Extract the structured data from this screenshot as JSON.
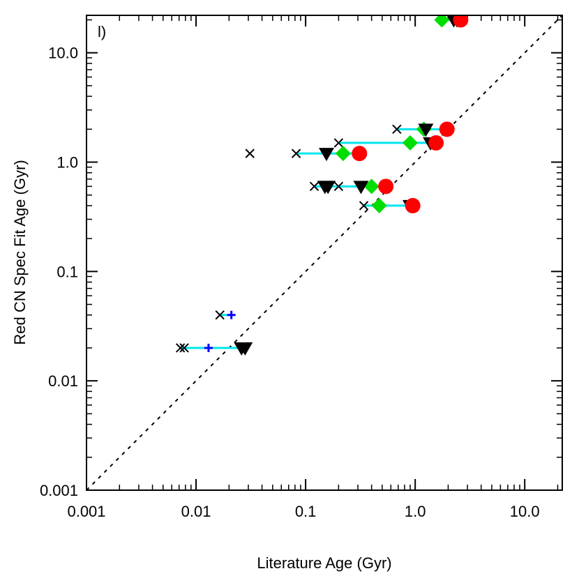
{
  "chart_data": {
    "type": "scatter",
    "title": "",
    "panel_label": "l)",
    "xlabel": "Literature Age (Gyr)",
    "ylabel": "Red CN Spec Fit Age (Gyr)",
    "xscale": "log",
    "yscale": "log",
    "xlim": [
      0.001,
      22
    ],
    "ylim": [
      0.001,
      22
    ],
    "x_tick_labels": [
      "0.001",
      "0.01",
      "0.1",
      "1.0",
      "10.0"
    ],
    "y_tick_labels": [
      "0.001",
      "0.01",
      "0.1",
      "1.0",
      "10.0"
    ],
    "x_ticks": [
      0.001,
      0.01,
      0.1,
      1,
      10
    ],
    "y_ticks": [
      0.001,
      0.01,
      0.1,
      1,
      10
    ],
    "reference_line": "one-to-one (dashed)",
    "colors": {
      "connector": "#00e5ee",
      "cross": "#000000",
      "plus": "#0000ff",
      "diamond": "#00dd00",
      "triangle": "#000000",
      "circle": "#ff0000",
      "reference": "#000000"
    },
    "ranges": [
      {
        "y": 20.0,
        "x": [
          1.75,
          2.6
        ]
      },
      {
        "y": 2.0,
        "x": [
          0.68,
          1.95
        ]
      },
      {
        "y": 1.5,
        "x": [
          0.2,
          1.55
        ]
      },
      {
        "y": 1.2,
        "x": [
          0.082,
          0.31
        ]
      },
      {
        "y": 0.6,
        "x": [
          0.12,
          0.54
        ]
      },
      {
        "y": 0.4,
        "x": [
          0.34,
          0.95
        ]
      },
      {
        "y": 0.04,
        "x": [
          0.0165,
          0.021
        ]
      },
      {
        "y": 0.02,
        "x": [
          0.0072,
          0.027
        ]
      }
    ],
    "series": [
      {
        "name": "cross",
        "marker": "x",
        "points": [
          {
            "x": 0.68,
            "y": 2.0
          },
          {
            "x": 0.2,
            "y": 1.5
          },
          {
            "x": 0.031,
            "y": 1.2
          },
          {
            "x": 0.082,
            "y": 1.2
          },
          {
            "x": 0.12,
            "y": 0.6
          },
          {
            "x": 0.2,
            "y": 0.6
          },
          {
            "x": 0.34,
            "y": 0.4
          },
          {
            "x": 0.0165,
            "y": 0.04
          },
          {
            "x": 0.0072,
            "y": 0.02
          },
          {
            "x": 0.0078,
            "y": 0.02
          }
        ]
      },
      {
        "name": "plus",
        "marker": "+",
        "points": [
          {
            "x": 0.021,
            "y": 0.04
          },
          {
            "x": 0.013,
            "y": 0.02
          }
        ]
      },
      {
        "name": "diamond",
        "marker": "diamond",
        "points": [
          {
            "x": 1.75,
            "y": 20.0
          },
          {
            "x": 1.2,
            "y": 2.0
          },
          {
            "x": 0.9,
            "y": 1.5
          },
          {
            "x": 0.22,
            "y": 1.2
          },
          {
            "x": 0.4,
            "y": 0.6
          },
          {
            "x": 0.47,
            "y": 0.4
          }
        ]
      },
      {
        "name": "triangle",
        "marker": "triangle-down",
        "points": [
          {
            "x": 2.25,
            "y": 20.0
          },
          {
            "x": 2.4,
            "y": 20.0
          },
          {
            "x": 1.25,
            "y": 2.0
          },
          {
            "x": 1.38,
            "y": 1.5
          },
          {
            "x": 0.155,
            "y": 1.2
          },
          {
            "x": 0.15,
            "y": 0.6
          },
          {
            "x": 0.16,
            "y": 0.6
          },
          {
            "x": 0.32,
            "y": 0.6
          },
          {
            "x": 0.9,
            "y": 0.4
          },
          {
            "x": 0.026,
            "y": 0.02
          },
          {
            "x": 0.028,
            "y": 0.02
          }
        ]
      },
      {
        "name": "circle",
        "marker": "circle",
        "points": [
          {
            "x": 2.6,
            "y": 20.0
          },
          {
            "x": 1.95,
            "y": 2.0
          },
          {
            "x": 1.55,
            "y": 1.5
          },
          {
            "x": 0.31,
            "y": 1.2
          },
          {
            "x": 0.54,
            "y": 0.6
          },
          {
            "x": 0.95,
            "y": 0.4
          }
        ]
      }
    ]
  }
}
